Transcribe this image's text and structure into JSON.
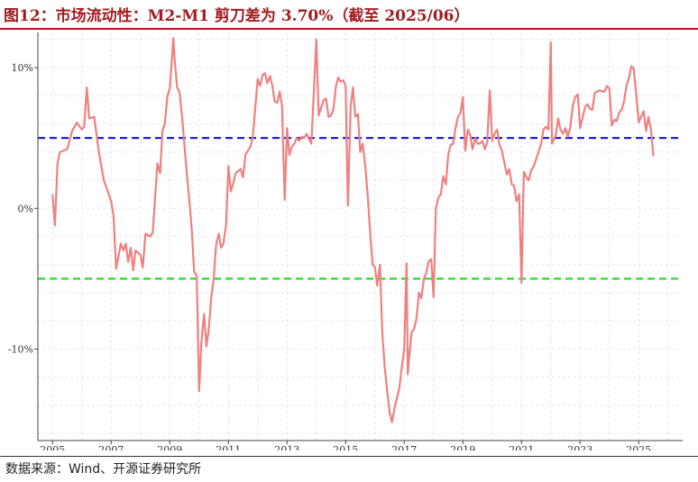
{
  "header": {
    "title": "图12：市场流动性：M2-M1 剪刀差为 3.70%（截至 2025/06）"
  },
  "footer": {
    "source": "数据来源：Wind、开源证券研究所"
  },
  "colors": {
    "title": "#a11d21",
    "series": "#f08080",
    "upper_ref": "#1f1fe0",
    "lower_ref": "#22dd22",
    "grid": "#e0e0e0"
  },
  "chart_data": {
    "type": "line",
    "title": "",
    "xlabel": "",
    "ylabel": "",
    "xlim": [
      2004.5,
      2026.5
    ],
    "ylim": [
      -16.5,
      12.5
    ],
    "x_ticks": [
      "2005",
      "2007",
      "2009",
      "2011",
      "2013",
      "2015",
      "2017",
      "2019",
      "2021",
      "2023",
      "2025"
    ],
    "y_ticks": [
      {
        "value": 10,
        "label": "10%"
      },
      {
        "value": 0,
        "label": "0%"
      },
      {
        "value": -10,
        "label": "-10%"
      }
    ],
    "grid": true,
    "reference_lines": [
      {
        "value": 5,
        "style": "dashed",
        "color": "#1f1fe0"
      },
      {
        "value": -5,
        "style": "dashed",
        "color": "#22dd22"
      }
    ],
    "series": [
      {
        "name": "",
        "color": "#f08080",
        "points": [
          [
            2005.0,
            1.0
          ],
          [
            2005.08,
            -1.2
          ],
          [
            2005.17,
            3.2
          ],
          [
            2005.25,
            4.0
          ],
          [
            2005.5,
            4.2
          ],
          [
            2005.67,
            5.5
          ],
          [
            2005.83,
            6.1
          ],
          [
            2006.0,
            5.6
          ],
          [
            2006.08,
            5.8
          ],
          [
            2006.17,
            8.6
          ],
          [
            2006.25,
            6.4
          ],
          [
            2006.42,
            6.5
          ],
          [
            2006.58,
            4.0
          ],
          [
            2006.75,
            2.0
          ],
          [
            2006.92,
            1.0
          ],
          [
            2007.0,
            0.5
          ],
          [
            2007.08,
            -0.5
          ],
          [
            2007.17,
            -4.3
          ],
          [
            2007.33,
            -2.5
          ],
          [
            2007.42,
            -3.0
          ],
          [
            2007.5,
            -2.5
          ],
          [
            2007.58,
            -3.8
          ],
          [
            2007.67,
            -2.8
          ],
          [
            2007.75,
            -4.4
          ],
          [
            2007.83,
            -3.0
          ],
          [
            2008.0,
            -3.3
          ],
          [
            2008.08,
            -4.2
          ],
          [
            2008.17,
            -1.8
          ],
          [
            2008.33,
            -2.0
          ],
          [
            2008.42,
            -1.7
          ],
          [
            2008.5,
            0.8
          ],
          [
            2008.58,
            3.2
          ],
          [
            2008.67,
            2.5
          ],
          [
            2008.75,
            5.5
          ],
          [
            2008.83,
            6.0
          ],
          [
            2008.92,
            8.0
          ],
          [
            2009.0,
            8.5
          ],
          [
            2009.08,
            10.8
          ],
          [
            2009.12,
            12.1
          ],
          [
            2009.17,
            10.5
          ],
          [
            2009.25,
            8.6
          ],
          [
            2009.33,
            8.3
          ],
          [
            2009.42,
            6.5
          ],
          [
            2009.5,
            4.5
          ],
          [
            2009.58,
            2.5
          ],
          [
            2009.67,
            0.5
          ],
          [
            2009.75,
            -1.5
          ],
          [
            2009.83,
            -4.5
          ],
          [
            2009.92,
            -4.8
          ],
          [
            2010.0,
            -13.0
          ],
          [
            2010.08,
            -9.5
          ],
          [
            2010.17,
            -7.5
          ],
          [
            2010.25,
            -9.8
          ],
          [
            2010.33,
            -8.6
          ],
          [
            2010.42,
            -6.2
          ],
          [
            2010.5,
            -5.0
          ],
          [
            2010.58,
            -2.6
          ],
          [
            2010.67,
            -1.8
          ],
          [
            2010.75,
            -2.8
          ],
          [
            2010.83,
            -2.5
          ],
          [
            2010.92,
            -1.2
          ],
          [
            2011.0,
            3.0
          ],
          [
            2011.08,
            1.2
          ],
          [
            2011.17,
            1.8
          ],
          [
            2011.25,
            2.5
          ],
          [
            2011.42,
            2.8
          ],
          [
            2011.5,
            2.2
          ],
          [
            2011.58,
            3.8
          ],
          [
            2011.75,
            4.4
          ],
          [
            2011.83,
            5.0
          ],
          [
            2012.0,
            9.2
          ],
          [
            2012.08,
            8.7
          ],
          [
            2012.17,
            9.5
          ],
          [
            2012.25,
            9.6
          ],
          [
            2012.33,
            8.9
          ],
          [
            2012.42,
            9.4
          ],
          [
            2012.5,
            8.7
          ],
          [
            2012.58,
            7.6
          ],
          [
            2012.67,
            7.5
          ],
          [
            2012.75,
            8.3
          ],
          [
            2012.83,
            7.3
          ],
          [
            2012.92,
            0.6
          ],
          [
            2013.0,
            5.7
          ],
          [
            2013.08,
            3.8
          ],
          [
            2013.17,
            4.4
          ],
          [
            2013.25,
            4.6
          ],
          [
            2013.33,
            5.0
          ],
          [
            2013.42,
            4.8
          ],
          [
            2013.5,
            5.1
          ],
          [
            2013.58,
            5.0
          ],
          [
            2013.67,
            5.3
          ],
          [
            2013.83,
            4.6
          ],
          [
            2014.0,
            12.0
          ],
          [
            2014.08,
            6.6
          ],
          [
            2014.17,
            7.2
          ],
          [
            2014.25,
            7.7
          ],
          [
            2014.33,
            7.8
          ],
          [
            2014.42,
            6.5
          ],
          [
            2014.5,
            6.6
          ],
          [
            2014.58,
            7.0
          ],
          [
            2014.67,
            8.7
          ],
          [
            2014.75,
            9.3
          ],
          [
            2014.83,
            9.0
          ],
          [
            2014.92,
            9.1
          ],
          [
            2015.0,
            8.7
          ],
          [
            2015.08,
            0.2
          ],
          [
            2015.17,
            7.2
          ],
          [
            2015.25,
            8.6
          ],
          [
            2015.33,
            6.5
          ],
          [
            2015.42,
            6.7
          ],
          [
            2015.5,
            4.0
          ],
          [
            2015.58,
            4.6
          ],
          [
            2015.67,
            3.0
          ],
          [
            2015.75,
            1.0
          ],
          [
            2015.83,
            -1.5
          ],
          [
            2015.92,
            -4.0
          ],
          [
            2016.0,
            -4.2
          ],
          [
            2016.08,
            -5.5
          ],
          [
            2016.17,
            -4.0
          ],
          [
            2016.25,
            -8.8
          ],
          [
            2016.33,
            -11.2
          ],
          [
            2016.42,
            -13.0
          ],
          [
            2016.5,
            -14.5
          ],
          [
            2016.58,
            -15.2
          ],
          [
            2016.67,
            -14.2
          ],
          [
            2016.75,
            -13.5
          ],
          [
            2016.83,
            -12.8
          ],
          [
            2016.92,
            -11.2
          ],
          [
            2017.0,
            -10.0
          ],
          [
            2017.08,
            -3.9
          ],
          [
            2017.12,
            -11.8
          ],
          [
            2017.17,
            -10.5
          ],
          [
            2017.25,
            -8.8
          ],
          [
            2017.33,
            -8.6
          ],
          [
            2017.42,
            -7.8
          ],
          [
            2017.5,
            -6.0
          ],
          [
            2017.58,
            -6.4
          ],
          [
            2017.67,
            -5.0
          ],
          [
            2017.75,
            -4.6
          ],
          [
            2017.83,
            -3.8
          ],
          [
            2017.92,
            -3.6
          ],
          [
            2018.0,
            -6.3
          ],
          [
            2018.08,
            0.0
          ],
          [
            2018.17,
            0.8
          ],
          [
            2018.25,
            1.0
          ],
          [
            2018.33,
            2.3
          ],
          [
            2018.42,
            1.7
          ],
          [
            2018.5,
            3.8
          ],
          [
            2018.58,
            4.5
          ],
          [
            2018.67,
            4.6
          ],
          [
            2018.75,
            5.7
          ],
          [
            2018.83,
            6.5
          ],
          [
            2018.92,
            6.8
          ],
          [
            2019.0,
            7.9
          ],
          [
            2019.08,
            4.1
          ],
          [
            2019.17,
            5.6
          ],
          [
            2019.25,
            5.2
          ],
          [
            2019.33,
            4.2
          ],
          [
            2019.42,
            5.0
          ],
          [
            2019.5,
            4.6
          ],
          [
            2019.58,
            4.6
          ],
          [
            2019.67,
            4.8
          ],
          [
            2019.75,
            4.2
          ],
          [
            2019.83,
            4.7
          ],
          [
            2019.92,
            8.4
          ],
          [
            2020.0,
            4.8
          ],
          [
            2020.08,
            5.3
          ],
          [
            2020.17,
            5.6
          ],
          [
            2020.25,
            4.5
          ],
          [
            2020.33,
            4.1
          ],
          [
            2020.42,
            3.2
          ],
          [
            2020.5,
            2.4
          ],
          [
            2020.58,
            2.8
          ],
          [
            2020.67,
            1.7
          ],
          [
            2020.75,
            1.6
          ],
          [
            2020.83,
            0.5
          ],
          [
            2020.92,
            1.0
          ],
          [
            2021.0,
            -5.3
          ],
          [
            2021.08,
            2.6
          ],
          [
            2021.17,
            2.2
          ],
          [
            2021.25,
            2.0
          ],
          [
            2021.33,
            2.7
          ],
          [
            2021.42,
            3.0
          ],
          [
            2021.5,
            3.5
          ],
          [
            2021.58,
            4.0
          ],
          [
            2021.67,
            4.6
          ],
          [
            2021.75,
            5.6
          ],
          [
            2021.83,
            5.8
          ],
          [
            2021.92,
            5.6
          ],
          [
            2022.0,
            11.8
          ],
          [
            2022.04,
            4.6
          ],
          [
            2022.17,
            5.2
          ],
          [
            2022.25,
            6.4
          ],
          [
            2022.33,
            5.6
          ],
          [
            2022.42,
            5.3
          ],
          [
            2022.5,
            5.7
          ],
          [
            2022.58,
            5.1
          ],
          [
            2022.67,
            5.8
          ],
          [
            2022.75,
            7.3
          ],
          [
            2022.83,
            7.9
          ],
          [
            2022.92,
            8.1
          ],
          [
            2023.0,
            5.7
          ],
          [
            2023.08,
            6.4
          ],
          [
            2023.17,
            7.2
          ],
          [
            2023.25,
            7.4
          ],
          [
            2023.33,
            7.1
          ],
          [
            2023.42,
            7.0
          ],
          [
            2023.5,
            8.2
          ],
          [
            2023.58,
            8.3
          ],
          [
            2023.67,
            8.4
          ],
          [
            2023.75,
            8.3
          ],
          [
            2023.83,
            8.3
          ],
          [
            2023.92,
            8.7
          ],
          [
            2024.0,
            8.5
          ],
          [
            2024.08,
            5.9
          ],
          [
            2024.17,
            6.3
          ],
          [
            2024.25,
            6.2
          ],
          [
            2024.33,
            6.8
          ],
          [
            2024.42,
            7.0
          ],
          [
            2024.5,
            7.6
          ],
          [
            2024.58,
            8.7
          ],
          [
            2024.67,
            9.3
          ],
          [
            2024.75,
            10.1
          ],
          [
            2024.83,
            9.9
          ],
          [
            2024.92,
            8.0
          ],
          [
            2025.0,
            6.1
          ],
          [
            2025.08,
            6.5
          ],
          [
            2025.17,
            6.9
          ],
          [
            2025.25,
            5.5
          ],
          [
            2025.33,
            6.5
          ],
          [
            2025.42,
            5.6
          ],
          [
            2025.5,
            3.7
          ]
        ]
      }
    ]
  }
}
